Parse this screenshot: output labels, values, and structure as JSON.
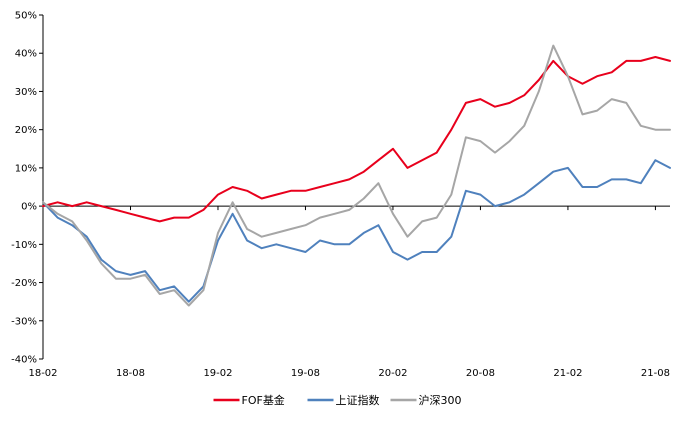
{
  "chart_data": {
    "type": "line",
    "title": "",
    "xlabel": "",
    "ylabel": "",
    "x_ticks": [
      "18-02",
      "18-08",
      "19-02",
      "19-08",
      "20-02",
      "20-08",
      "21-02",
      "21-08"
    ],
    "y_ticks": [
      "-40%",
      "-30%",
      "-20%",
      "-10%",
      "0%",
      "10%",
      "20%",
      "30%",
      "40%",
      "50%"
    ],
    "ylim": [
      -40,
      50
    ],
    "x_range": [
      "2018-02",
      "2021-09"
    ],
    "grid": false,
    "legend_position": "bottom",
    "series": [
      {
        "name": "FOF基金",
        "color": "#e8001c",
        "points": [
          [
            "2018-02",
            0
          ],
          [
            "2018-03",
            1
          ],
          [
            "2018-04",
            0
          ],
          [
            "2018-05",
            1
          ],
          [
            "2018-06",
            0
          ],
          [
            "2018-07",
            -1
          ],
          [
            "2018-08",
            -2
          ],
          [
            "2018-09",
            -3
          ],
          [
            "2018-10",
            -4
          ],
          [
            "2018-11",
            -3
          ],
          [
            "2018-12",
            -3
          ],
          [
            "2019-01",
            -1
          ],
          [
            "2019-02",
            3
          ],
          [
            "2019-03",
            5
          ],
          [
            "2019-04",
            4
          ],
          [
            "2019-05",
            2
          ],
          [
            "2019-06",
            3
          ],
          [
            "2019-07",
            4
          ],
          [
            "2019-08",
            4
          ],
          [
            "2019-09",
            5
          ],
          [
            "2019-10",
            6
          ],
          [
            "2019-11",
            7
          ],
          [
            "2019-12",
            9
          ],
          [
            "2020-01",
            12
          ],
          [
            "2020-02",
            15
          ],
          [
            "2020-03",
            10
          ],
          [
            "2020-04",
            12
          ],
          [
            "2020-05",
            14
          ],
          [
            "2020-06",
            20
          ],
          [
            "2020-07",
            27
          ],
          [
            "2020-08",
            28
          ],
          [
            "2020-09",
            26
          ],
          [
            "2020-10",
            27
          ],
          [
            "2020-11",
            29
          ],
          [
            "2020-12",
            33
          ],
          [
            "2021-01",
            38
          ],
          [
            "2021-02",
            34
          ],
          [
            "2021-03",
            32
          ],
          [
            "2021-04",
            34
          ],
          [
            "2021-05",
            35
          ],
          [
            "2021-06",
            38
          ],
          [
            "2021-07",
            38
          ],
          [
            "2021-08",
            39
          ],
          [
            "2021-09",
            38
          ]
        ]
      },
      {
        "name": "上证指数",
        "color": "#4f81bd",
        "points": [
          [
            "2018-02",
            1
          ],
          [
            "2018-03",
            -3
          ],
          [
            "2018-04",
            -5
          ],
          [
            "2018-05",
            -8
          ],
          [
            "2018-06",
            -14
          ],
          [
            "2018-07",
            -17
          ],
          [
            "2018-08",
            -18
          ],
          [
            "2018-09",
            -17
          ],
          [
            "2018-10",
            -22
          ],
          [
            "2018-11",
            -21
          ],
          [
            "2018-12",
            -25
          ],
          [
            "2019-01",
            -21
          ],
          [
            "2019-02",
            -9
          ],
          [
            "2019-03",
            -2
          ],
          [
            "2019-04",
            -9
          ],
          [
            "2019-05",
            -11
          ],
          [
            "2019-06",
            -10
          ],
          [
            "2019-07",
            -11
          ],
          [
            "2019-08",
            -12
          ],
          [
            "2019-09",
            -9
          ],
          [
            "2019-10",
            -10
          ],
          [
            "2019-11",
            -10
          ],
          [
            "2019-12",
            -7
          ],
          [
            "2020-01",
            -5
          ],
          [
            "2020-02",
            -12
          ],
          [
            "2020-03",
            -14
          ],
          [
            "2020-04",
            -12
          ],
          [
            "2020-05",
            -12
          ],
          [
            "2020-06",
            -8
          ],
          [
            "2020-07",
            4
          ],
          [
            "2020-08",
            3
          ],
          [
            "2020-09",
            0
          ],
          [
            "2020-10",
            1
          ],
          [
            "2020-11",
            3
          ],
          [
            "2020-12",
            6
          ],
          [
            "2021-01",
            9
          ],
          [
            "2021-02",
            10
          ],
          [
            "2021-03",
            5
          ],
          [
            "2021-04",
            5
          ],
          [
            "2021-05",
            7
          ],
          [
            "2021-06",
            7
          ],
          [
            "2021-07",
            6
          ],
          [
            "2021-08",
            12
          ],
          [
            "2021-09",
            10
          ]
        ]
      },
      {
        "name": "沪深300",
        "color": "#a6a6a6",
        "points": [
          [
            "2018-02",
            1
          ],
          [
            "2018-03",
            -2
          ],
          [
            "2018-04",
            -4
          ],
          [
            "2018-05",
            -9
          ],
          [
            "2018-06",
            -15
          ],
          [
            "2018-07",
            -19
          ],
          [
            "2018-08",
            -19
          ],
          [
            "2018-09",
            -18
          ],
          [
            "2018-10",
            -23
          ],
          [
            "2018-11",
            -22
          ],
          [
            "2018-12",
            -26
          ],
          [
            "2019-01",
            -22
          ],
          [
            "2019-02",
            -7
          ],
          [
            "2019-03",
            1
          ],
          [
            "2019-04",
            -6
          ],
          [
            "2019-05",
            -8
          ],
          [
            "2019-06",
            -7
          ],
          [
            "2019-07",
            -6
          ],
          [
            "2019-08",
            -5
          ],
          [
            "2019-09",
            -3
          ],
          [
            "2019-10",
            -2
          ],
          [
            "2019-11",
            -1
          ],
          [
            "2019-12",
            2
          ],
          [
            "2020-01",
            6
          ],
          [
            "2020-02",
            -2
          ],
          [
            "2020-03",
            -8
          ],
          [
            "2020-04",
            -4
          ],
          [
            "2020-05",
            -3
          ],
          [
            "2020-06",
            3
          ],
          [
            "2020-07",
            18
          ],
          [
            "2020-08",
            17
          ],
          [
            "2020-09",
            14
          ],
          [
            "2020-10",
            17
          ],
          [
            "2020-11",
            21
          ],
          [
            "2020-12",
            30
          ],
          [
            "2021-01",
            42
          ],
          [
            "2021-02",
            34
          ],
          [
            "2021-03",
            24
          ],
          [
            "2021-04",
            25
          ],
          [
            "2021-05",
            28
          ],
          [
            "2021-06",
            27
          ],
          [
            "2021-07",
            21
          ],
          [
            "2021-08",
            20
          ],
          [
            "2021-09",
            20
          ]
        ]
      }
    ]
  }
}
